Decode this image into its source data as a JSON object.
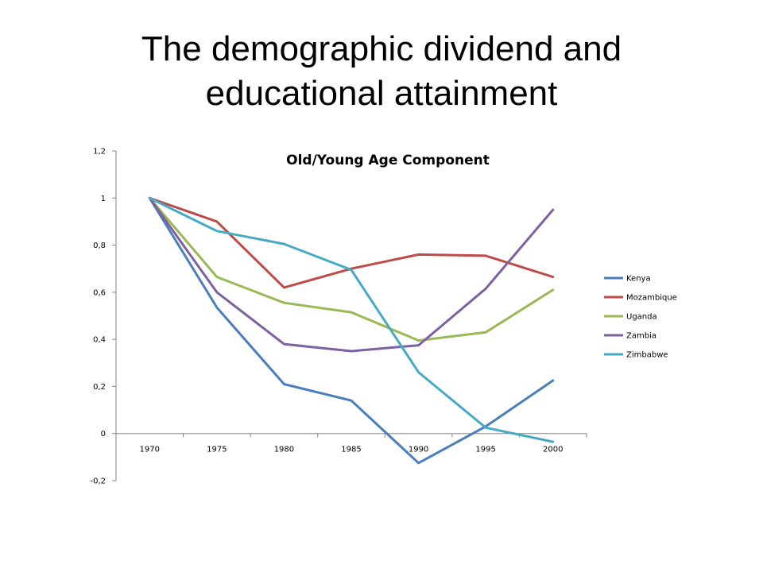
{
  "slide": {
    "title_line1": "The demographic dividend and",
    "title_line2": "educational attainment"
  },
  "chart_data": {
    "type": "line",
    "title": "Old/Young Age Component",
    "xlabel": "",
    "ylabel": "",
    "categories": [
      "1970",
      "1975",
      "1980",
      "1985",
      "1990",
      "1995",
      "2000"
    ],
    "ylim": [
      -0.2,
      1.2
    ],
    "yticks": [
      -0.2,
      0,
      0.2,
      0.4,
      0.6,
      0.8,
      1,
      1.2
    ],
    "ytick_labels": [
      "-0,2",
      "0",
      "0,2",
      "0,4",
      "0,6",
      "0,8",
      "1",
      "1,2"
    ],
    "grid": false,
    "legend_position": "right",
    "series": [
      {
        "name": "Kenya",
        "color": "#4a7ebb",
        "values": [
          1.0,
          0.535,
          0.21,
          0.14,
          -0.125,
          0.03,
          0.225
        ]
      },
      {
        "name": "Mozambique",
        "color": "#be4b48",
        "values": [
          1.0,
          0.9,
          0.62,
          0.7,
          0.76,
          0.755,
          0.665
        ]
      },
      {
        "name": "Uganda",
        "color": "#98b954",
        "values": [
          1.0,
          0.665,
          0.555,
          0.515,
          0.395,
          0.43,
          0.61
        ]
      },
      {
        "name": "Zambia",
        "color": "#7d60a0",
        "values": [
          1.0,
          0.6,
          0.38,
          0.35,
          0.375,
          0.615,
          0.95
        ]
      },
      {
        "name": "Zimbabwe",
        "color": "#46aac5",
        "values": [
          1.0,
          0.86,
          0.805,
          0.695,
          0.26,
          0.025,
          -0.035
        ]
      }
    ]
  }
}
